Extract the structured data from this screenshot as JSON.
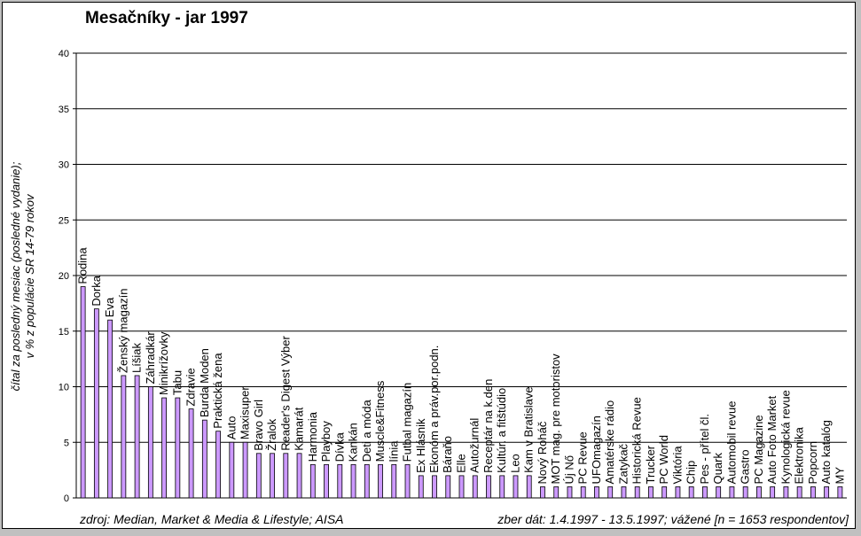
{
  "chart_data": {
    "type": "bar",
    "title": "Mesačníky - jar 1997",
    "ylabel_lines": [
      "čítal za posledný mesiac (posledné vydanie);",
      "v % z populácie SR 14-79 rokov"
    ],
    "footer_left": "zdroj: Median, Market & Media & Lifestyle; AISA",
    "footer_right": "zber dát: 1.4.1997 - 13.5.1997; vážené [n = 1653 respondentov]",
    "ylim": [
      0,
      40
    ],
    "yticks": [
      "0",
      "5",
      "10",
      "15",
      "20",
      "25",
      "30",
      "35",
      "40"
    ],
    "grid": true,
    "bar_color": "#cc99ff",
    "categories": [
      "Rodina",
      "Dorka",
      "Eva",
      "Ženský magazín",
      "Líšiak",
      "Záhradkár",
      "Minikrížovky",
      "Tabu",
      "Zdravie",
      "Burda Moden",
      "Praktická žena",
      "Auto",
      "Maxisuper",
      "Bravo Girl",
      "Žralok",
      "Reader's Digest Výber",
      "Kamarát",
      "Harmonia",
      "Playboy",
      "Dívka",
      "Kankán",
      "Deti a móda",
      "Muscle&Fitness",
      "línia",
      "Futbal magazín",
      "Ex Hlásnik",
      "Ekonóm a práv.por.podn.",
      "Báraňo",
      "Elle",
      "Autožurnál",
      "Receptár na k.den",
      "Kultúr. a fitštúdio",
      "Leo",
      "Kam v Bratislave",
      "Nový Roháč",
      "MOT mag. pre motoristov",
      "Új Nő",
      "PC Revue",
      "UFOmagazín",
      "Amatérske rádio",
      "Zatykač",
      "Historická Revue",
      "Trucker",
      "PC World",
      "Viktória",
      "Chip",
      "Pes - přítel čl.",
      "Quark",
      "Automobil revue",
      "Gastro",
      "PC Magazine",
      "Auto Foto Market",
      "Kynologická revue",
      "Elektronika",
      "Popcorn",
      "Auto katalóg",
      "MY"
    ],
    "values": [
      19,
      17,
      16,
      11,
      11,
      10,
      9,
      9,
      8,
      7,
      6,
      5,
      5,
      4,
      4,
      4,
      4,
      3,
      3,
      3,
      3,
      3,
      3,
      3,
      3,
      2,
      2,
      2,
      2,
      2,
      2,
      2,
      2,
      2,
      1,
      1,
      1,
      1,
      1,
      1,
      1,
      1,
      1,
      1,
      1,
      1,
      1,
      1,
      1,
      1,
      1,
      1,
      1,
      1,
      1,
      1,
      1
    ]
  }
}
